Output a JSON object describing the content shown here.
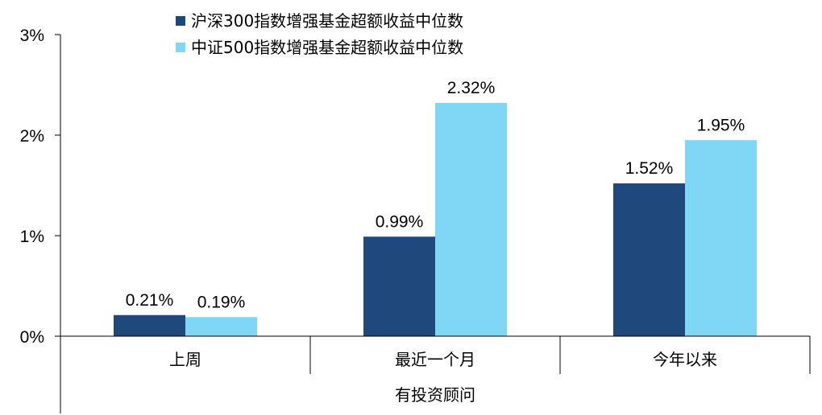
{
  "chart_data": {
    "type": "bar",
    "categories": [
      "上周",
      "最近一个月",
      "今年以来"
    ],
    "group_label": "有投资顾问",
    "series": [
      {
        "name": "沪深300指数增强基金超额收益中位数",
        "values": [
          0.21,
          0.99,
          1.52
        ],
        "labels": [
          "0.21%",
          "0.99%",
          "1.52%"
        ],
        "color": "#1F497D"
      },
      {
        "name": "中证500指数增强基金超额收益中位数",
        "values": [
          0.19,
          2.32,
          1.95
        ],
        "labels": [
          "0.19%",
          "2.32%",
          "1.95%"
        ],
        "color": "#7FD6F5"
      }
    ],
    "ylim": [
      0,
      3
    ],
    "yticks": [
      0,
      1,
      2,
      3
    ],
    "ytick_labels": [
      "0%",
      "1%",
      "2%",
      "3%"
    ],
    "legend": "top"
  }
}
